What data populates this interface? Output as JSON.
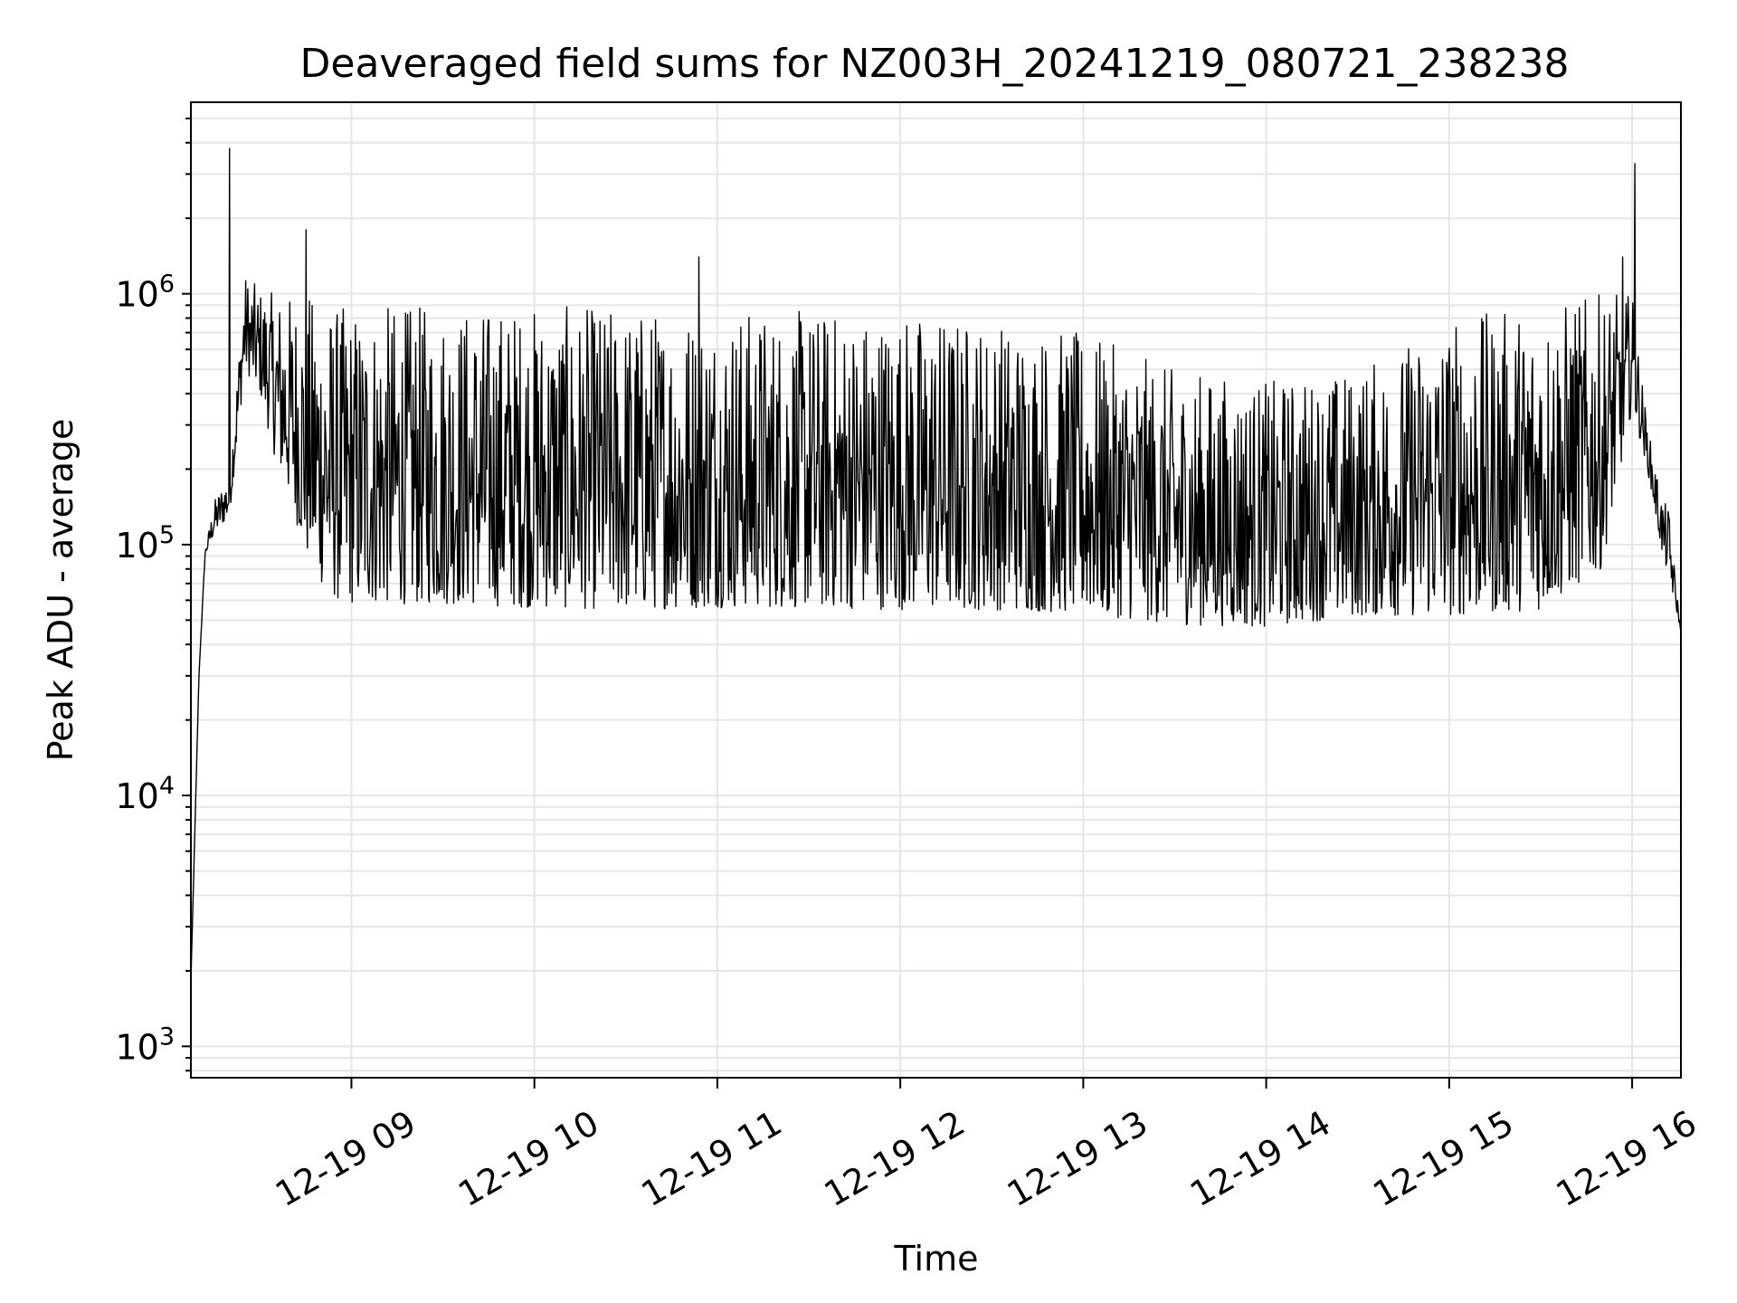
{
  "chart_data": {
    "type": "line",
    "title": "Deaveraged field sums for NZ003H_20241219_080721_238238",
    "xlabel": "Time",
    "ylabel": "Peak ADU - average",
    "yscale": "log",
    "ylim": [
      750,
      5800000
    ],
    "xlim": [
      "2024-12-19 08:07:21",
      "2024-12-19 16:16:00"
    ],
    "grid": true,
    "line_color": "#000000",
    "grid_color": "#e6e6e6",
    "x_ticks": [
      {
        "time": "2024-12-19 09:00",
        "label": "12-19 09"
      },
      {
        "time": "2024-12-19 10:00",
        "label": "12-19 10"
      },
      {
        "time": "2024-12-19 11:00",
        "label": "12-19 11"
      },
      {
        "time": "2024-12-19 12:00",
        "label": "12-19 12"
      },
      {
        "time": "2024-12-19 13:00",
        "label": "12-19 13"
      },
      {
        "time": "2024-12-19 14:00",
        "label": "12-19 14"
      },
      {
        "time": "2024-12-19 15:00",
        "label": "12-19 15"
      },
      {
        "time": "2024-12-19 16:00",
        "label": "12-19 16"
      }
    ],
    "y_ticks": [
      {
        "value": 1000,
        "base": "10",
        "exp": "3"
      },
      {
        "value": 10000,
        "base": "10",
        "exp": "4"
      },
      {
        "value": 100000,
        "base": "10",
        "exp": "5"
      },
      {
        "value": 1000000,
        "base": "10",
        "exp": "6"
      }
    ],
    "series": [
      {
        "envelope": {
          "x": [
            "2024-12-19 08:07:21",
            "2024-12-19 08:10",
            "2024-12-19 08:12",
            "2024-12-19 08:15",
            "2024-12-19 08:20",
            "2024-12-19 08:25",
            "2024-12-19 08:30",
            "2024-12-19 08:35",
            "2024-12-19 08:40",
            "2024-12-19 08:45",
            "2024-12-19 08:50",
            "2024-12-19 08:55",
            "2024-12-19 09:00",
            "2024-12-19 09:30",
            "2024-12-19 10:00",
            "2024-12-19 10:30",
            "2024-12-19 11:00",
            "2024-12-19 11:30",
            "2024-12-19 12:00",
            "2024-12-19 12:30",
            "2024-12-19 13:00",
            "2024-12-19 13:30",
            "2024-12-19 14:00",
            "2024-12-19 14:30",
            "2024-12-19 15:00",
            "2024-12-19 15:30",
            "2024-12-19 15:50",
            "2024-12-19 16:00",
            "2024-12-19 16:05",
            "2024-12-19 16:10",
            "2024-12-19 16:12",
            "2024-12-19 16:16"
          ],
          "low": [
            1800,
            30000,
            90000,
            110000,
            130000,
            500000,
            400000,
            220000,
            150000,
            90000,
            70000,
            60000,
            58000,
            58000,
            56000,
            55000,
            56000,
            56000,
            55000,
            55000,
            53000,
            48000,
            47000,
            52000,
            52000,
            55000,
            80000,
            350000,
            200000,
            90000,
            75000,
            45000
          ],
          "high": [
            1800,
            30000,
            95000,
            150000,
            200000,
            1200000,
            1050000,
            1000000,
            1000000,
            1000000,
            950000,
            900000,
            900000,
            900000,
            900000,
            880000,
            880000,
            860000,
            860000,
            800000,
            700000,
            500000,
            450000,
            500000,
            800000,
            900000,
            1000000,
            1000000,
            300000,
            150000,
            140000,
            45000
          ]
        },
        "spikes": [
          {
            "x": "2024-12-19 08:20",
            "y": 3800000
          },
          {
            "x": "2024-12-19 08:45",
            "y": 1800000
          },
          {
            "x": "2024-12-19 10:54",
            "y": 1400000
          },
          {
            "x": "2024-12-19 15:57",
            "y": 1400000
          },
          {
            "x": "2024-12-19 16:01",
            "y": 3300000
          }
        ]
      }
    ]
  }
}
